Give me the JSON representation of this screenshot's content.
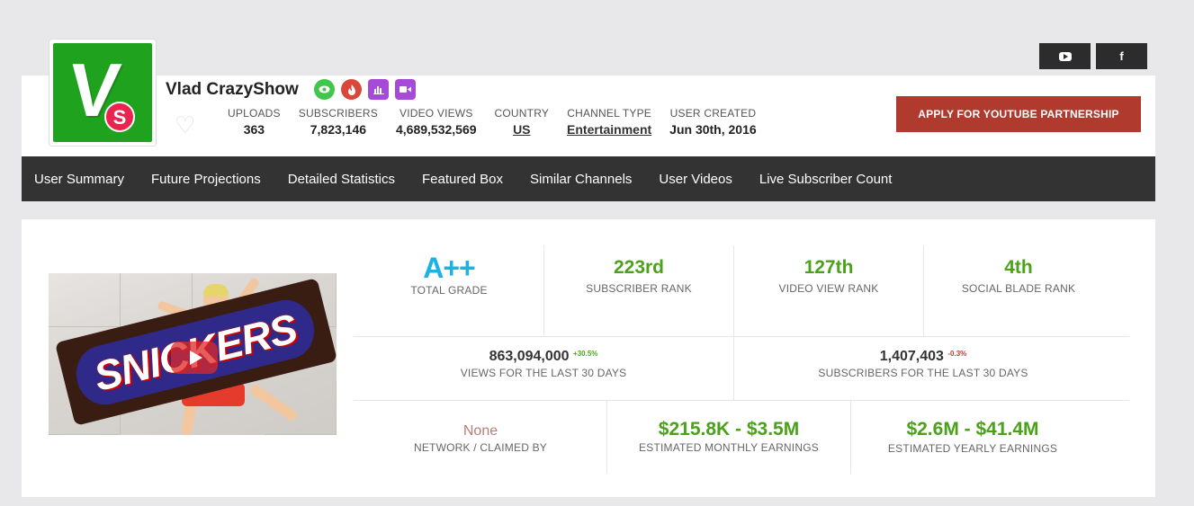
{
  "channel": {
    "name": "Vlad CrazyShow",
    "avatar_letter": "V",
    "avatar_badge_letter": "S"
  },
  "social": {
    "youtube_icon": "youtube-icon",
    "facebook_label": "f"
  },
  "stats": [
    {
      "label": "UPLOADS",
      "value": "363"
    },
    {
      "label": "SUBSCRIBERS",
      "value": "7,823,146"
    },
    {
      "label": "VIDEO VIEWS",
      "value": "4,689,532,569"
    },
    {
      "label": "COUNTRY",
      "value": "US"
    },
    {
      "label": "CHANNEL TYPE",
      "value": "Entertainment"
    },
    {
      "label": "USER CREATED",
      "value": "Jun 30th, 2016"
    }
  ],
  "apply_button": "APPLY FOR YOUTUBE PARTNERSHIP",
  "nav": [
    "User Summary",
    "Future Projections",
    "Detailed Statistics",
    "Featured Box",
    "Similar Channels",
    "User Videos",
    "Live Subscriber Count"
  ],
  "thumbnail": {
    "text": "SNICKERS"
  },
  "summary": {
    "grade": {
      "value": "A++",
      "label": "TOTAL GRADE"
    },
    "subscriber_rank": {
      "value": "223rd",
      "label": "SUBSCRIBER RANK"
    },
    "video_view_rank": {
      "value": "127th",
      "label": "VIDEO VIEW RANK"
    },
    "social_blade_rank": {
      "value": "4th",
      "label": "SOCIAL BLADE RANK"
    },
    "views_30": {
      "value": "863,094,000",
      "change": "+30.5%",
      "label": "VIEWS FOR THE LAST 30 DAYS"
    },
    "subs_30": {
      "value": "1,407,403",
      "change": "-0.3%",
      "label": "SUBSCRIBERS FOR THE LAST 30 DAYS"
    },
    "network": {
      "value": "None",
      "label": "NETWORK / CLAIMED BY"
    },
    "monthly": {
      "value": "$215.8K - $3.5M",
      "label": "ESTIMATED MONTHLY EARNINGS"
    },
    "yearly": {
      "value": "$2.6M - $41.4M",
      "label": "ESTIMATED YEARLY EARNINGS"
    }
  },
  "colors": {
    "nav_bg": "#333333",
    "apply_bg": "#b03a2e",
    "green": "#4ba21a",
    "grade_blue": "#1cb3e3"
  }
}
